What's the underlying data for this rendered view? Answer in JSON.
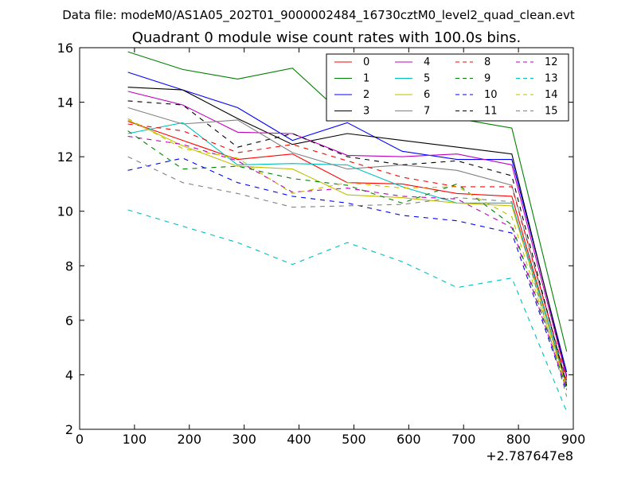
{
  "chart_data": {
    "type": "line",
    "suptitle": "Data file: modeM0/AS1A05_202T01_9000002484_16730cztM0_level2_quad_clean.evt",
    "title": "Quadrant 0 module wise count rates with 100.0s bins.",
    "xlabel": "",
    "ylabel": "",
    "x_offset_label": "+2.787647e8",
    "xlim": [
      0,
      900
    ],
    "ylim": [
      2,
      16
    ],
    "xticks": [
      0,
      100,
      200,
      300,
      400,
      500,
      600,
      700,
      800,
      900
    ],
    "xtick_labels": [
      "0",
      "100",
      "200",
      "300",
      "400",
      "500",
      "600",
      "700",
      "800",
      "900"
    ],
    "yticks": [
      2,
      4,
      6,
      8,
      10,
      12,
      14,
      16
    ],
    "ytick_labels": [
      "2",
      "4",
      "6",
      "8",
      "10",
      "12",
      "14",
      "16"
    ],
    "x": [
      88,
      188,
      288,
      388,
      488,
      588,
      688,
      788,
      888
    ],
    "legend_position": "top-right",
    "legend_columns": 4,
    "series": [
      {
        "name": "0",
        "color": "#ff0000",
        "dash": "solid",
        "values": [
          13.3,
          12.6,
          11.9,
          12.1,
          11.05,
          11.0,
          10.65,
          10.55,
          3.6
        ]
      },
      {
        "name": "1",
        "color": "#008000",
        "dash": "solid",
        "values": [
          15.85,
          15.2,
          14.85,
          15.25,
          13.4,
          13.6,
          13.4,
          13.05,
          4.85
        ]
      },
      {
        "name": "2",
        "color": "#0000ff",
        "dash": "solid",
        "values": [
          15.1,
          14.45,
          13.8,
          12.6,
          13.25,
          12.2,
          11.9,
          11.9,
          4.1
        ]
      },
      {
        "name": "3",
        "color": "#000000",
        "dash": "solid",
        "values": [
          14.55,
          14.45,
          13.4,
          12.45,
          12.85,
          12.6,
          12.35,
          12.1,
          3.95
        ]
      },
      {
        "name": "4",
        "color": "#bf00bf",
        "dash": "solid",
        "values": [
          14.4,
          13.9,
          12.9,
          12.85,
          12.05,
          12.0,
          12.1,
          11.7,
          3.9
        ]
      },
      {
        "name": "5",
        "color": "#00bfbf",
        "dash": "solid",
        "values": [
          12.85,
          13.25,
          11.7,
          11.75,
          11.7,
          10.9,
          10.3,
          10.3,
          3.7
        ]
      },
      {
        "name": "6",
        "color": "#bfbf00",
        "dash": "solid",
        "values": [
          13.35,
          12.4,
          11.65,
          11.55,
          10.6,
          10.5,
          10.3,
          10.2,
          3.55
        ]
      },
      {
        "name": "7",
        "color": "#808080",
        "dash": "solid",
        "values": [
          13.8,
          13.2,
          13.35,
          12.15,
          11.55,
          11.7,
          11.5,
          10.95,
          3.7
        ]
      },
      {
        "name": "8",
        "color": "#ff0000",
        "dash": "dashed",
        "values": [
          13.2,
          12.95,
          12.15,
          12.45,
          11.85,
          11.25,
          10.9,
          10.9,
          3.8
        ]
      },
      {
        "name": "9",
        "color": "#008000",
        "dash": "dashed",
        "values": [
          12.95,
          11.55,
          11.65,
          11.2,
          10.95,
          10.3,
          11.0,
          9.5,
          3.5
        ]
      },
      {
        "name": "10",
        "color": "#0000ff",
        "dash": "dashed",
        "values": [
          11.5,
          11.95,
          11.05,
          10.55,
          10.3,
          9.85,
          9.65,
          9.2,
          3.4
        ]
      },
      {
        "name": "11",
        "color": "#000000",
        "dash": "dashed",
        "values": [
          14.05,
          13.9,
          12.35,
          12.85,
          12.0,
          11.7,
          11.85,
          11.3,
          3.6
        ]
      },
      {
        "name": "12",
        "color": "#bf00bf",
        "dash": "dashed",
        "values": [
          12.75,
          12.45,
          11.85,
          10.7,
          10.85,
          10.55,
          10.45,
          9.4,
          3.45
        ]
      },
      {
        "name": "13",
        "color": "#00bfbf",
        "dash": "dashed",
        "values": [
          10.05,
          9.45,
          8.85,
          8.05,
          8.85,
          8.15,
          7.2,
          7.55,
          2.65
        ]
      },
      {
        "name": "14",
        "color": "#bfbf00",
        "dash": "dashed",
        "values": [
          13.4,
          12.3,
          11.95,
          10.65,
          11.05,
          10.85,
          10.9,
          9.8,
          3.5
        ]
      },
      {
        "name": "15",
        "color": "#808080",
        "dash": "dashed",
        "values": [
          12.0,
          11.05,
          10.65,
          10.15,
          10.2,
          10.25,
          10.5,
          10.35,
          3.2
        ]
      }
    ]
  }
}
